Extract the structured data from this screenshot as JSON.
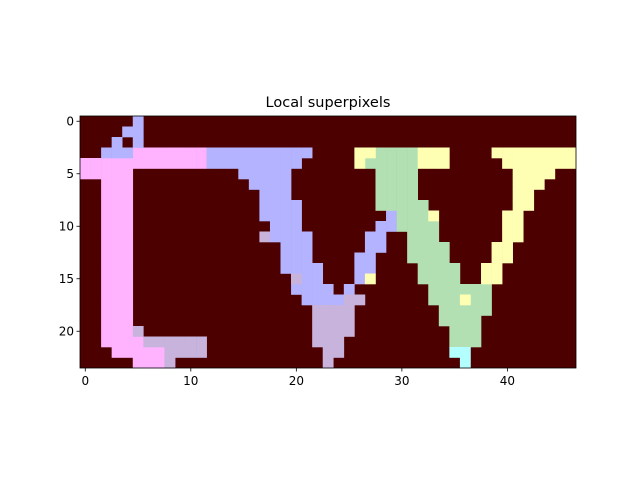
{
  "chart_data": {
    "type": "heatmap",
    "title": "Local superpixels",
    "xlabel": "",
    "ylabel": "",
    "image_size": {
      "columns": 47,
      "rows": 24
    },
    "xlim": [
      -0.5,
      46.5
    ],
    "ylim": [
      23.5,
      -0.5
    ],
    "xticks": [
      0,
      10,
      20,
      30,
      40
    ],
    "yticks": [
      0,
      5,
      10,
      15,
      20
    ],
    "grid": false,
    "legend": "none",
    "background_color": "#4d0000",
    "segments": [
      {
        "id": 1,
        "color": "#ffb3ff",
        "cells": [
          [
            5,
            3
          ],
          [
            6,
            3
          ],
          [
            7,
            3
          ],
          [
            8,
            3
          ],
          [
            9,
            3
          ],
          [
            10,
            3
          ],
          [
            11,
            3
          ],
          [
            0,
            4
          ],
          [
            1,
            4
          ],
          [
            2,
            4
          ],
          [
            3,
            4
          ],
          [
            4,
            4
          ],
          [
            5,
            4
          ],
          [
            6,
            4
          ],
          [
            7,
            4
          ],
          [
            8,
            4
          ],
          [
            9,
            4
          ],
          [
            10,
            4
          ],
          [
            11,
            4
          ],
          [
            0,
            5
          ],
          [
            1,
            5
          ],
          [
            2,
            5
          ],
          [
            3,
            5
          ],
          [
            4,
            5
          ],
          [
            2,
            6
          ],
          [
            3,
            6
          ],
          [
            4,
            6
          ],
          [
            2,
            7
          ],
          [
            3,
            7
          ],
          [
            4,
            7
          ],
          [
            2,
            8
          ],
          [
            3,
            8
          ],
          [
            4,
            8
          ],
          [
            2,
            9
          ],
          [
            3,
            9
          ],
          [
            4,
            9
          ],
          [
            2,
            10
          ],
          [
            3,
            10
          ],
          [
            4,
            10
          ],
          [
            2,
            11
          ],
          [
            3,
            11
          ],
          [
            4,
            11
          ],
          [
            2,
            12
          ],
          [
            3,
            12
          ],
          [
            4,
            12
          ],
          [
            2,
            13
          ],
          [
            3,
            13
          ],
          [
            4,
            13
          ],
          [
            2,
            14
          ],
          [
            3,
            14
          ],
          [
            4,
            14
          ],
          [
            2,
            15
          ],
          [
            3,
            15
          ],
          [
            4,
            15
          ],
          [
            2,
            16
          ],
          [
            3,
            16
          ],
          [
            4,
            16
          ],
          [
            2,
            17
          ],
          [
            3,
            17
          ],
          [
            4,
            17
          ],
          [
            2,
            18
          ],
          [
            3,
            18
          ],
          [
            4,
            18
          ],
          [
            2,
            19
          ],
          [
            3,
            19
          ],
          [
            4,
            19
          ],
          [
            2,
            20
          ],
          [
            3,
            20
          ],
          [
            4,
            20
          ],
          [
            2,
            21
          ],
          [
            3,
            21
          ],
          [
            4,
            21
          ],
          [
            5,
            21
          ],
          [
            3,
            22
          ],
          [
            4,
            22
          ],
          [
            5,
            22
          ],
          [
            6,
            22
          ],
          [
            7,
            22
          ],
          [
            5,
            23
          ],
          [
            6,
            23
          ],
          [
            7,
            23
          ],
          [
            8,
            23
          ]
        ]
      },
      {
        "id": 2,
        "color": "#b3b3ff",
        "cells": [
          [
            5,
            0
          ],
          [
            4,
            1
          ],
          [
            5,
            1
          ],
          [
            3,
            2
          ],
          [
            5,
            2
          ],
          [
            2,
            3
          ],
          [
            3,
            3
          ],
          [
            4,
            3
          ],
          [
            12,
            3
          ],
          [
            13,
            3
          ],
          [
            14,
            3
          ],
          [
            15,
            3
          ],
          [
            16,
            3
          ],
          [
            17,
            3
          ],
          [
            18,
            3
          ],
          [
            19,
            3
          ],
          [
            20,
            3
          ],
          [
            21,
            3
          ],
          [
            12,
            4
          ],
          [
            13,
            4
          ],
          [
            14,
            4
          ],
          [
            15,
            4
          ],
          [
            16,
            4
          ],
          [
            17,
            4
          ],
          [
            18,
            4
          ],
          [
            19,
            4
          ],
          [
            20,
            4
          ],
          [
            15,
            5
          ],
          [
            16,
            5
          ],
          [
            17,
            5
          ],
          [
            18,
            5
          ],
          [
            19,
            5
          ],
          [
            16,
            6
          ],
          [
            17,
            6
          ],
          [
            18,
            6
          ],
          [
            19,
            6
          ],
          [
            17,
            7
          ],
          [
            18,
            7
          ],
          [
            19,
            7
          ],
          [
            17,
            8
          ],
          [
            18,
            8
          ],
          [
            19,
            8
          ],
          [
            20,
            8
          ],
          [
            17,
            9
          ],
          [
            18,
            9
          ],
          [
            19,
            9
          ],
          [
            20,
            9
          ],
          [
            18,
            10
          ],
          [
            19,
            10
          ],
          [
            20,
            10
          ],
          [
            18,
            11
          ],
          [
            19,
            11
          ],
          [
            20,
            11
          ],
          [
            21,
            11
          ],
          [
            19,
            12
          ],
          [
            20,
            12
          ],
          [
            21,
            12
          ],
          [
            19,
            13
          ],
          [
            20,
            13
          ],
          [
            21,
            13
          ],
          [
            19,
            14
          ],
          [
            20,
            14
          ],
          [
            21,
            14
          ],
          [
            22,
            14
          ],
          [
            20,
            15
          ],
          [
            21,
            15
          ],
          [
            22,
            15
          ],
          [
            20,
            16
          ],
          [
            21,
            16
          ],
          [
            22,
            16
          ],
          [
            23,
            16
          ],
          [
            21,
            17
          ],
          [
            22,
            17
          ],
          [
            23,
            17
          ],
          [
            24,
            17
          ],
          [
            29,
            9
          ],
          [
            28,
            10
          ],
          [
            29,
            10
          ],
          [
            27,
            11
          ],
          [
            28,
            11
          ],
          [
            27,
            12
          ],
          [
            28,
            12
          ],
          [
            26,
            13
          ],
          [
            27,
            13
          ],
          [
            26,
            14
          ],
          [
            27,
            14
          ],
          [
            26,
            15
          ],
          [
            25,
            16
          ]
        ]
      },
      {
        "id": 3,
        "color": "#b3e0b3",
        "cells": [
          [
            28,
            3
          ],
          [
            29,
            3
          ],
          [
            30,
            3
          ],
          [
            31,
            3
          ],
          [
            27,
            4
          ],
          [
            28,
            4
          ],
          [
            29,
            4
          ],
          [
            30,
            4
          ],
          [
            31,
            4
          ],
          [
            28,
            5
          ],
          [
            29,
            5
          ],
          [
            30,
            5
          ],
          [
            31,
            5
          ],
          [
            28,
            6
          ],
          [
            29,
            6
          ],
          [
            30,
            6
          ],
          [
            31,
            6
          ],
          [
            28,
            7
          ],
          [
            29,
            7
          ],
          [
            30,
            7
          ],
          [
            31,
            7
          ],
          [
            28,
            8
          ],
          [
            29,
            8
          ],
          [
            30,
            8
          ],
          [
            31,
            8
          ],
          [
            32,
            8
          ],
          [
            30,
            9
          ],
          [
            31,
            9
          ],
          [
            32,
            9
          ],
          [
            30,
            10
          ],
          [
            31,
            10
          ],
          [
            32,
            10
          ],
          [
            33,
            10
          ],
          [
            31,
            11
          ],
          [
            32,
            11
          ],
          [
            33,
            11
          ],
          [
            31,
            12
          ],
          [
            32,
            12
          ],
          [
            33,
            12
          ],
          [
            34,
            12
          ],
          [
            31,
            13
          ],
          [
            32,
            13
          ],
          [
            33,
            13
          ],
          [
            34,
            13
          ],
          [
            32,
            14
          ],
          [
            33,
            14
          ],
          [
            34,
            14
          ],
          [
            35,
            14
          ],
          [
            32,
            15
          ],
          [
            33,
            15
          ],
          [
            34,
            15
          ],
          [
            35,
            15
          ],
          [
            33,
            16
          ],
          [
            34,
            16
          ],
          [
            35,
            16
          ],
          [
            36,
            16
          ],
          [
            37,
            16
          ],
          [
            38,
            16
          ],
          [
            33,
            17
          ],
          [
            34,
            17
          ],
          [
            35,
            17
          ],
          [
            37,
            17
          ],
          [
            38,
            17
          ],
          [
            34,
            18
          ],
          [
            35,
            18
          ],
          [
            36,
            18
          ],
          [
            37,
            18
          ],
          [
            38,
            18
          ],
          [
            34,
            19
          ],
          [
            35,
            19
          ],
          [
            36,
            19
          ],
          [
            37,
            19
          ],
          [
            35,
            20
          ],
          [
            36,
            20
          ],
          [
            37,
            20
          ],
          [
            35,
            21
          ],
          [
            36,
            21
          ],
          [
            37,
            21
          ]
        ]
      },
      {
        "id": 4,
        "color": "#ffffb3",
        "cells": [
          [
            26,
            3
          ],
          [
            27,
            3
          ],
          [
            32,
            3
          ],
          [
            33,
            3
          ],
          [
            34,
            3
          ],
          [
            26,
            4
          ],
          [
            32,
            4
          ],
          [
            33,
            4
          ],
          [
            34,
            4
          ],
          [
            33,
            9
          ],
          [
            39,
            3
          ],
          [
            40,
            3
          ],
          [
            41,
            3
          ],
          [
            42,
            3
          ],
          [
            43,
            3
          ],
          [
            44,
            3
          ],
          [
            45,
            3
          ],
          [
            46,
            3
          ],
          [
            40,
            4
          ],
          [
            41,
            4
          ],
          [
            42,
            4
          ],
          [
            43,
            4
          ],
          [
            44,
            4
          ],
          [
            45,
            4
          ],
          [
            46,
            4
          ],
          [
            41,
            5
          ],
          [
            42,
            5
          ],
          [
            43,
            5
          ],
          [
            44,
            5
          ],
          [
            41,
            6
          ],
          [
            42,
            6
          ],
          [
            43,
            6
          ],
          [
            41,
            7
          ],
          [
            42,
            7
          ],
          [
            41,
            8
          ],
          [
            42,
            8
          ],
          [
            40,
            9
          ],
          [
            41,
            9
          ],
          [
            40,
            10
          ],
          [
            41,
            10
          ],
          [
            40,
            11
          ],
          [
            41,
            11
          ],
          [
            39,
            12
          ],
          [
            40,
            12
          ],
          [
            39,
            13
          ],
          [
            40,
            13
          ],
          [
            38,
            14
          ],
          [
            39,
            14
          ],
          [
            38,
            15
          ],
          [
            39,
            15
          ],
          [
            27,
            15
          ],
          [
            36,
            17
          ]
        ]
      },
      {
        "id": 5,
        "color": "#c8b3dc",
        "cells": [
          [
            5,
            20
          ],
          [
            6,
            21
          ],
          [
            7,
            21
          ],
          [
            8,
            21
          ],
          [
            9,
            21
          ],
          [
            10,
            21
          ],
          [
            11,
            21
          ],
          [
            8,
            22
          ],
          [
            9,
            22
          ],
          [
            10,
            22
          ],
          [
            11,
            22
          ],
          [
            8,
            23
          ],
          [
            17,
            11
          ],
          [
            20,
            15
          ],
          [
            25,
            17
          ],
          [
            26,
            17
          ],
          [
            22,
            18
          ],
          [
            23,
            18
          ],
          [
            24,
            18
          ],
          [
            25,
            18
          ],
          [
            22,
            19
          ],
          [
            23,
            19
          ],
          [
            24,
            19
          ],
          [
            25,
            19
          ],
          [
            22,
            20
          ],
          [
            23,
            20
          ],
          [
            24,
            20
          ],
          [
            25,
            20
          ],
          [
            22,
            21
          ],
          [
            23,
            21
          ],
          [
            24,
            21
          ],
          [
            23,
            22
          ],
          [
            24,
            22
          ],
          [
            23,
            23
          ]
        ]
      },
      {
        "id": 6,
        "color": "#b3ffff",
        "cells": [
          [
            35,
            22
          ],
          [
            36,
            22
          ],
          [
            36,
            23
          ]
        ]
      }
    ]
  }
}
